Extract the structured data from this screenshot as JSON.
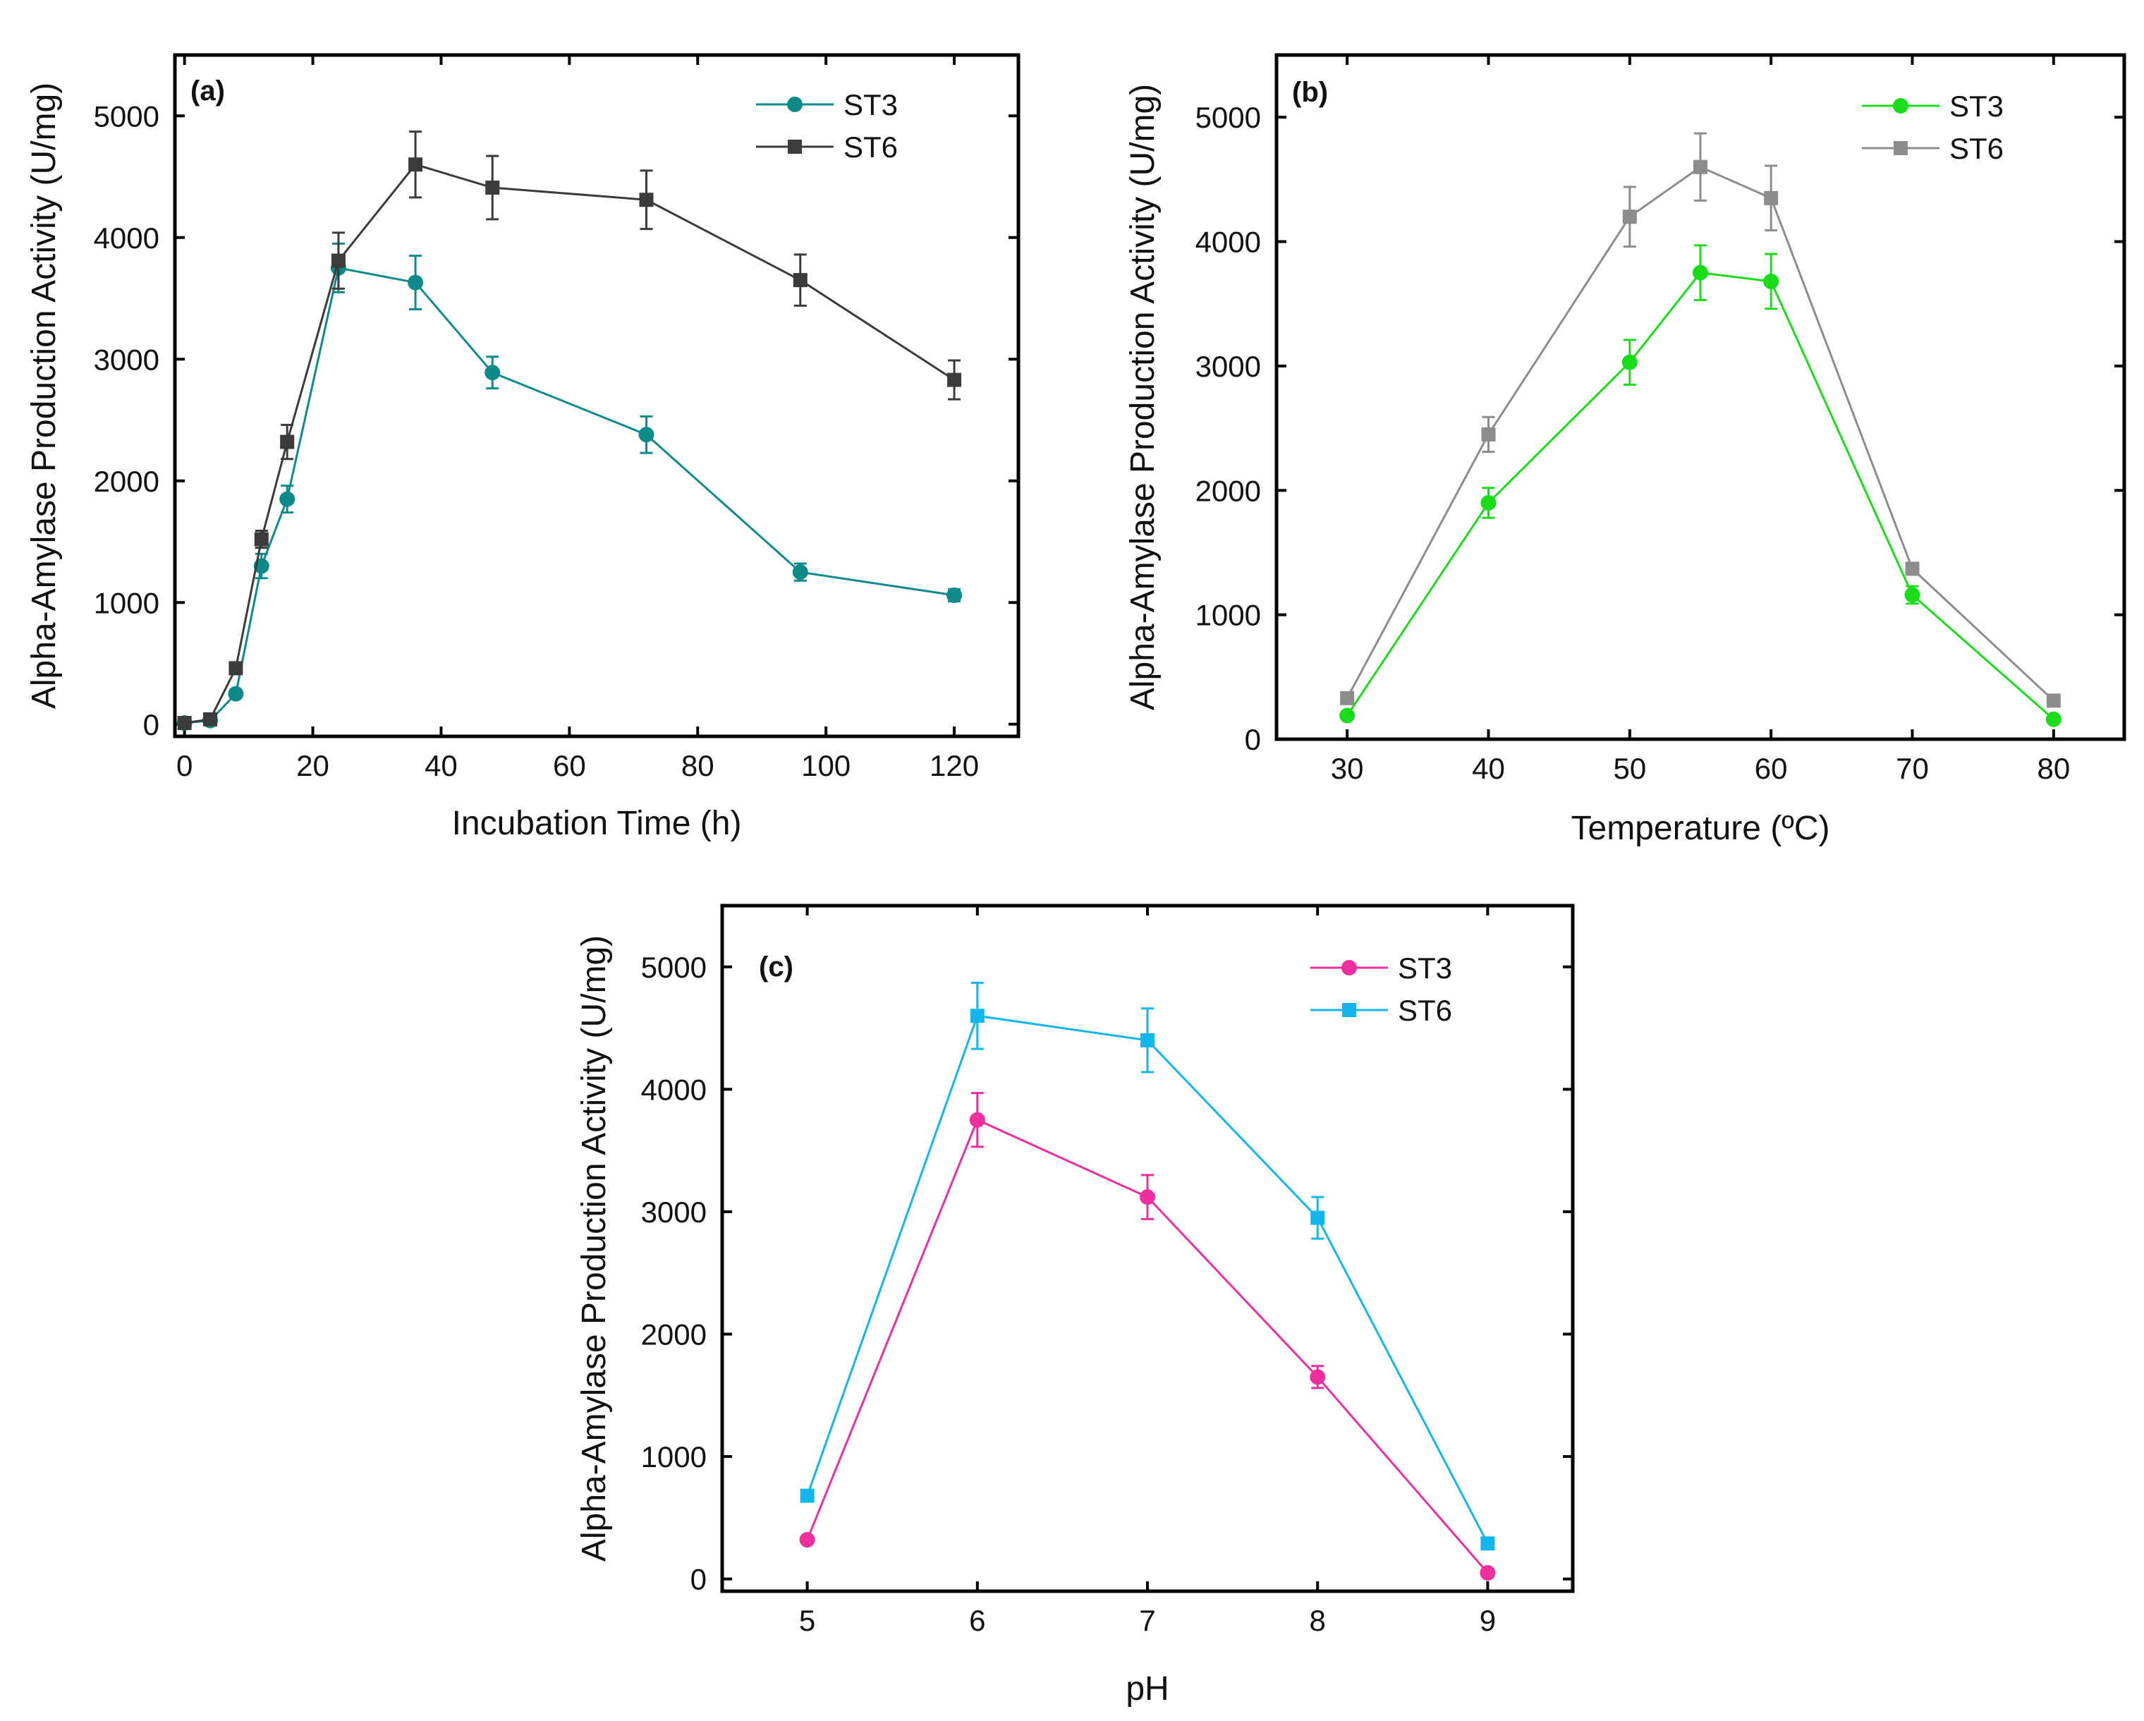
{
  "chart_data": [
    {
      "type": "line",
      "panel": "(a)",
      "xlabel": "Incubation Time (h)",
      "ylabel": "Alpha-Amylase Production Activity (U/mg)",
      "xlim": [
        -1.5,
        130
      ],
      "ylim": [
        -100,
        5500
      ],
      "xticks": [
        0,
        20,
        40,
        60,
        80,
        100,
        120
      ],
      "yticks": [
        0,
        1000,
        2000,
        3000,
        4000,
        5000
      ],
      "legend": "top-right",
      "series": [
        {
          "name": "ST3",
          "color": "#0e8a8a",
          "marker": "circle",
          "x": [
            0,
            4,
            8,
            12,
            16,
            24,
            36,
            48,
            72,
            96,
            120
          ],
          "y": [
            10,
            30,
            250,
            1300,
            1850,
            3750,
            3630,
            2890,
            2380,
            1250,
            1060
          ],
          "err": [
            20,
            20,
            30,
            100,
            110,
            200,
            220,
            130,
            150,
            70,
            50
          ]
        },
        {
          "name": "ST6",
          "color": "#3b3b3b",
          "marker": "square",
          "x": [
            0,
            4,
            8,
            12,
            16,
            24,
            36,
            48,
            72,
            96,
            120
          ],
          "y": [
            10,
            40,
            460,
            1520,
            2320,
            3810,
            4600,
            4410,
            4310,
            3650,
            2830
          ],
          "err": [
            20,
            20,
            40,
            70,
            140,
            230,
            270,
            260,
            240,
            210,
            160
          ]
        }
      ]
    },
    {
      "type": "line",
      "panel": "(b)",
      "xlabel": "Temperature (ºC)",
      "ylabel": "Alpha-Amylase Production Activity (U/mg)",
      "xlim": [
        25,
        85
      ],
      "ylim": [
        0,
        5500
      ],
      "xticks": [
        30,
        40,
        50,
        60,
        70,
        80
      ],
      "yticks": [
        0,
        1000,
        2000,
        3000,
        4000,
        5000
      ],
      "legend": "top-right",
      "series": [
        {
          "name": "ST3",
          "color": "#1bdc1b",
          "marker": "circle",
          "x": [
            30,
            40,
            50,
            55,
            60,
            70,
            80
          ],
          "y": [
            190,
            1900,
            3030,
            3750,
            3680,
            1160,
            160
          ],
          "err": [
            20,
            120,
            180,
            220,
            220,
            70,
            20
          ]
        },
        {
          "name": "ST6",
          "color": "#8c8c8c",
          "marker": "square",
          "x": [
            30,
            40,
            50,
            55,
            60,
            70,
            80
          ],
          "y": [
            330,
            2450,
            4200,
            4600,
            4350,
            1370,
            310
          ],
          "err": [
            20,
            140,
            240,
            270,
            260,
            30,
            20
          ]
        }
      ]
    },
    {
      "type": "line",
      "panel": "(c)",
      "xlabel": "pH",
      "ylabel": "Alpha-Amylase Production Activity (U/mg)",
      "xlim": [
        4.5,
        9.5
      ],
      "ylim": [
        -100,
        5500
      ],
      "xticks": [
        5,
        6,
        7,
        8,
        9
      ],
      "yticks": [
        0,
        1000,
        2000,
        3000,
        4000,
        5000
      ],
      "legend": "top-right",
      "series": [
        {
          "name": "ST3",
          "color": "#ee2f9d",
          "marker": "circle",
          "x": [
            5,
            6,
            7,
            8,
            9
          ],
          "y": [
            320,
            3750,
            3120,
            1650,
            50
          ],
          "err": [
            20,
            220,
            180,
            90,
            20
          ]
        },
        {
          "name": "ST6",
          "color": "#12b6ec",
          "marker": "square",
          "x": [
            5,
            6,
            7,
            8,
            9
          ],
          "y": [
            680,
            4600,
            4400,
            2950,
            290
          ],
          "err": [
            20,
            270,
            260,
            170,
            20
          ]
        }
      ]
    }
  ]
}
